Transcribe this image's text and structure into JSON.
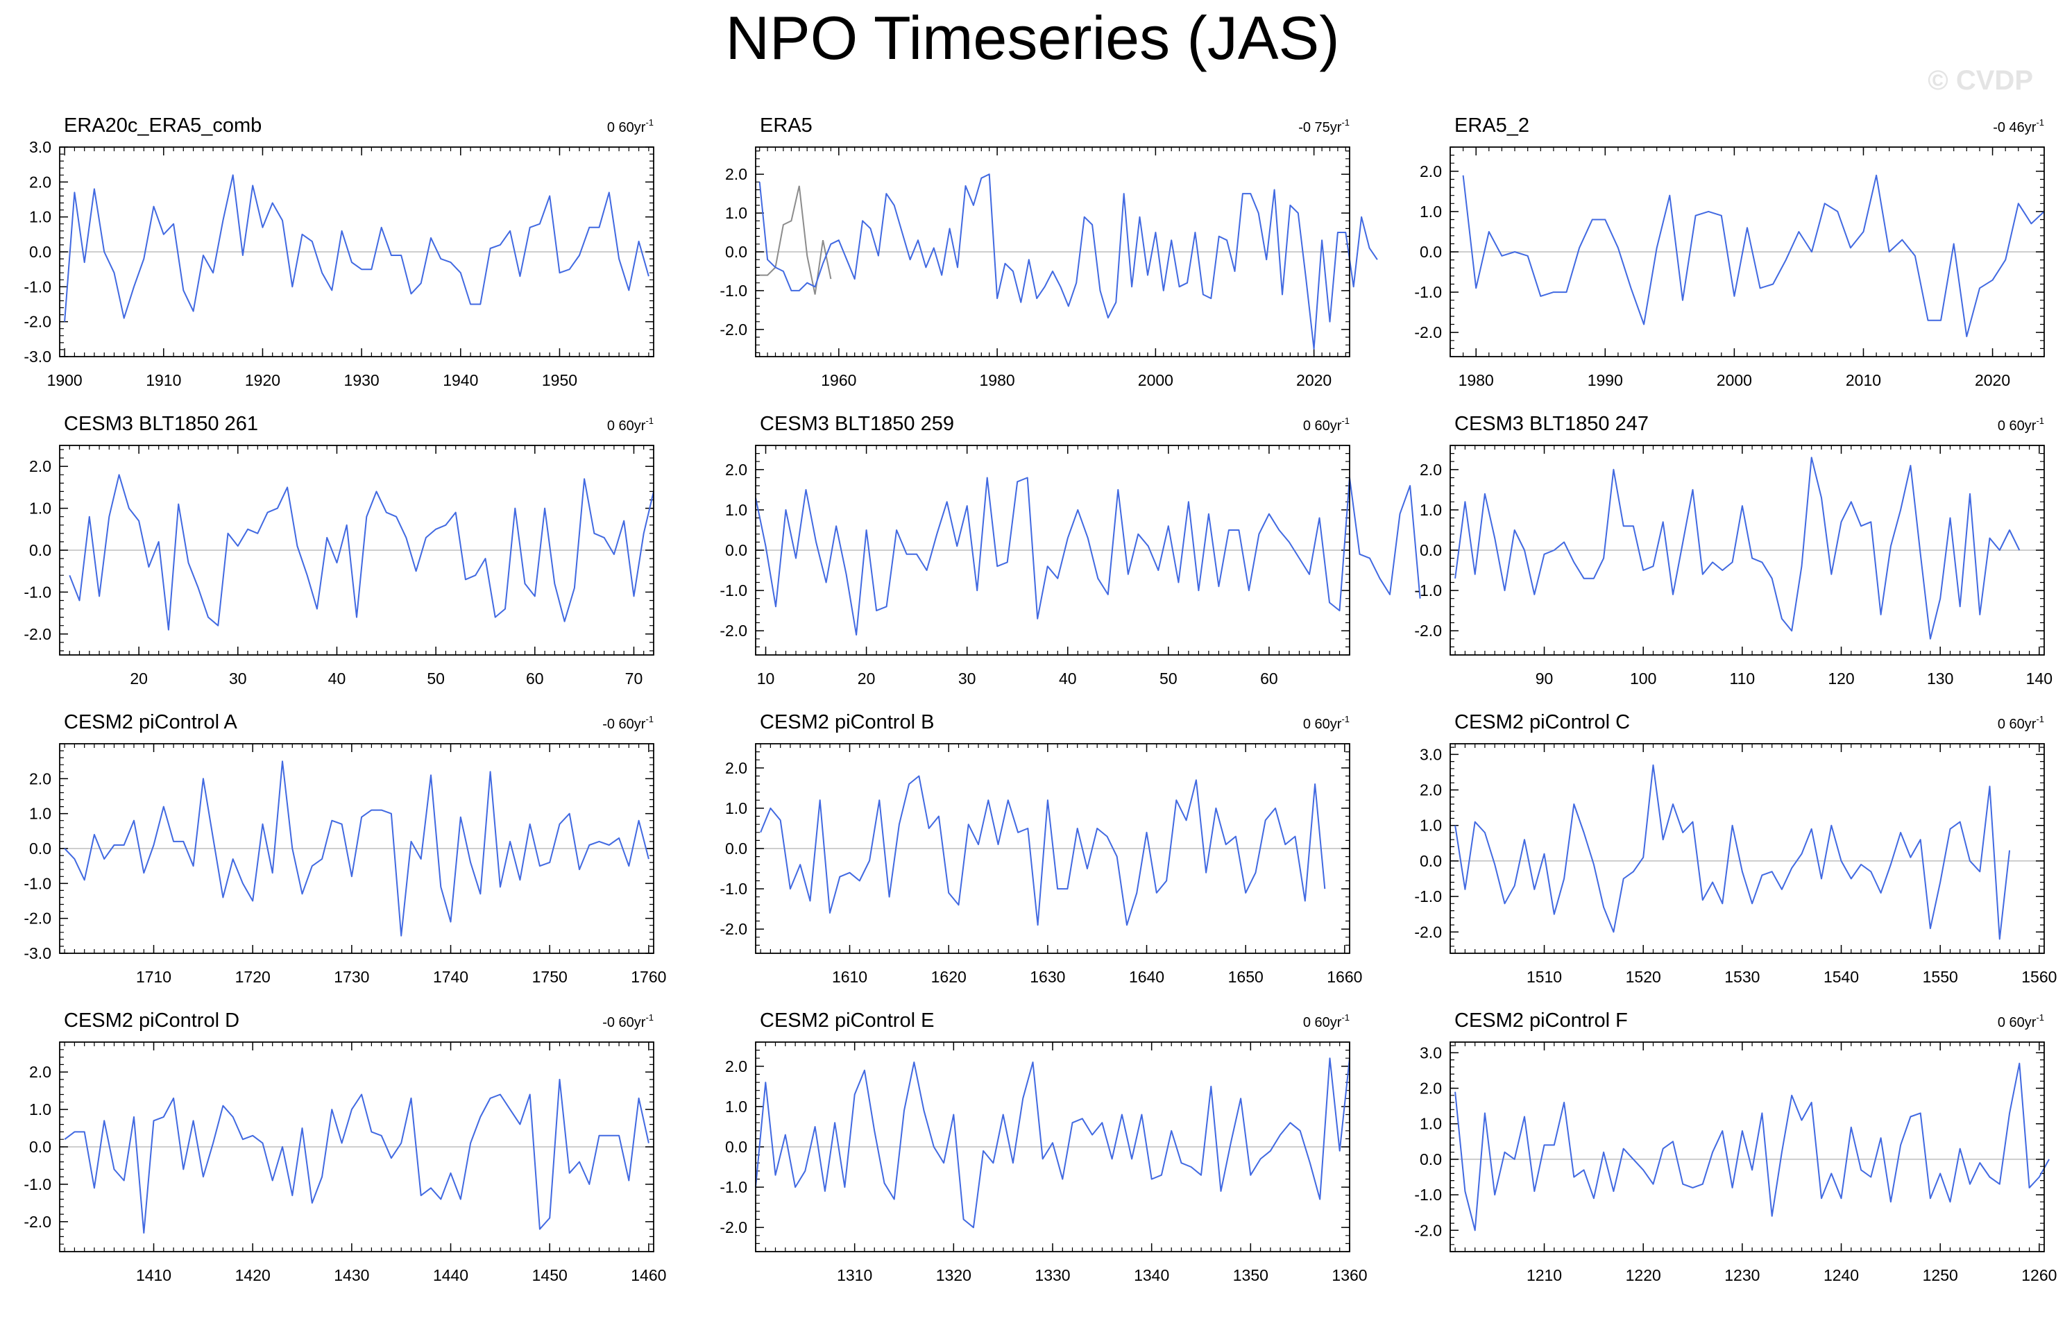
{
  "title": "NPO Timeseries (JAS)",
  "watermark": "© CVDP",
  "colors": {
    "series": "#4169e1",
    "overlay": "#8c8c8c",
    "zero_line": "#bebebe",
    "axis": "#000000"
  },
  "chart_data": [
    {
      "type": "line",
      "title": "ERA20c_ERA5_comb",
      "trend": "0 60yr",
      "trend_exp": "-1",
      "x_start": 1900,
      "xlim": [
        1899.5,
        1959.5
      ],
      "ylim": [
        -3,
        3
      ],
      "xticks": [
        1900,
        1910,
        1920,
        1930,
        1940,
        1950
      ],
      "yticks": [
        -3,
        -2,
        -1,
        0,
        1,
        2,
        3
      ],
      "yticklabels": [
        "-3.0",
        "-2.0",
        "-1.0",
        "0.0",
        "1.0",
        "2.0",
        "3.0"
      ],
      "values": [
        -2.0,
        1.7,
        -0.3,
        1.8,
        0.0,
        -0.6,
        -1.9,
        -1.0,
        -0.2,
        1.3,
        0.5,
        0.8,
        -1.1,
        -1.7,
        -0.1,
        -0.6,
        0.9,
        2.2,
        -0.1,
        1.9,
        0.7,
        1.4,
        0.9,
        -1.0,
        0.5,
        0.3,
        -0.6,
        -1.1,
        0.6,
        -0.3,
        -0.5,
        -0.5,
        0.7,
        -0.1,
        -0.1,
        -1.2,
        -0.9,
        0.4,
        -0.2,
        -0.3,
        -0.6,
        -1.5,
        -1.5,
        0.1,
        0.2,
        0.6,
        -0.7,
        0.7,
        0.8,
        1.6,
        -0.6,
        -0.5,
        -0.1,
        0.7,
        0.7,
        1.7,
        -0.2,
        -1.1,
        0.3,
        -0.7
      ]
    },
    {
      "type": "line",
      "title": "ERA5",
      "trend": "-0 75yr",
      "trend_exp": "-1",
      "x_start": 1950,
      "xlim": [
        1949.5,
        2024.5
      ],
      "ylim": [
        -2.7,
        2.7
      ],
      "xticks": [
        1960,
        1980,
        2000,
        2020
      ],
      "yticks": [
        -2,
        -1,
        0,
        1,
        2
      ],
      "yticklabels": [
        "-2.0",
        "-1.0",
        "0.0",
        "1.0",
        "2.0"
      ],
      "values": [
        1.8,
        -0.2,
        -0.4,
        -0.5,
        -1.0,
        -1.0,
        -0.8,
        -0.9,
        -0.3,
        0.2,
        0.3,
        -0.2,
        -0.7,
        0.8,
        0.6,
        -0.1,
        1.5,
        1.2,
        0.5,
        -0.2,
        0.3,
        -0.4,
        0.1,
        -0.6,
        0.6,
        -0.4,
        1.7,
        1.2,
        1.9,
        2.0,
        -1.2,
        -0.3,
        -0.5,
        -1.3,
        -0.2,
        -1.2,
        -0.9,
        -0.5,
        -0.9,
        -1.4,
        -0.8,
        0.9,
        0.7,
        -1.0,
        -1.7,
        -1.3,
        1.5,
        -0.9,
        0.9,
        -0.6,
        0.5,
        -1.0,
        0.3,
        -0.9,
        -0.8,
        0.5,
        -1.1,
        -1.2,
        0.4,
        0.3,
        -0.5,
        1.5,
        1.5,
        1.0,
        -0.2,
        1.6,
        -1.1,
        1.2,
        1.0,
        -0.7,
        -2.5,
        0.3,
        -1.8,
        0.5,
        0.5,
        -0.9,
        0.9,
        0.1,
        -0.2
      ],
      "overlay_x_start": 1950,
      "overlay_values": [
        -0.6,
        -0.6,
        -0.4,
        0.7,
        0.8,
        1.7,
        -0.1,
        -1.1,
        0.3,
        -0.7
      ]
    },
    {
      "type": "line",
      "title": "ERA5_2",
      "trend": "-0 46yr",
      "trend_exp": "-1",
      "x_start": 1979,
      "xlim": [
        1978,
        2024
      ],
      "ylim": [
        -2.6,
        2.6
      ],
      "xticks": [
        1980,
        1990,
        2000,
        2010,
        2020
      ],
      "yticks": [
        -2,
        -1,
        0,
        1,
        2
      ],
      "yticklabels": [
        "-2.0",
        "-1.0",
        "0.0",
        "1.0",
        "2.0"
      ],
      "values": [
        1.9,
        -0.9,
        0.5,
        -0.1,
        0.0,
        -0.1,
        -1.1,
        -1.0,
        -1.0,
        0.1,
        0.8,
        0.8,
        0.1,
        -0.9,
        -1.8,
        0.1,
        1.4,
        -1.2,
        0.9,
        1.0,
        0.9,
        -1.1,
        0.6,
        -0.9,
        -0.8,
        -0.2,
        0.5,
        0.0,
        1.2,
        1.0,
        0.1,
        0.5,
        1.9,
        0.0,
        0.3,
        -0.1,
        -1.7,
        -1.7,
        0.2,
        -2.1,
        -0.9,
        -0.7,
        -0.2,
        1.2,
        0.7,
        1.0
      ]
    },
    {
      "type": "line",
      "title": "CESM3 BLT1850 261",
      "trend": "0 60yr",
      "trend_exp": "-1",
      "x_start": 13,
      "xlim": [
        12,
        72
      ],
      "ylim": [
        -2.5,
        2.5
      ],
      "xticks": [
        20,
        30,
        40,
        50,
        60,
        70
      ],
      "yticks": [
        -2,
        -1,
        0,
        1,
        2
      ],
      "yticklabels": [
        "-2.0",
        "-1.0",
        "0.0",
        "1.0",
        "2.0"
      ],
      "values": [
        -0.6,
        -1.2,
        0.8,
        -1.1,
        0.8,
        1.8,
        1.0,
        0.7,
        -0.4,
        0.2,
        -1.9,
        1.1,
        -0.3,
        -0.9,
        -1.6,
        -1.8,
        0.4,
        0.1,
        0.5,
        0.4,
        0.9,
        1.0,
        1.5,
        0.1,
        -0.6,
        -1.4,
        0.3,
        -0.3,
        0.6,
        -1.6,
        0.8,
        1.4,
        0.9,
        0.8,
        0.3,
        -0.5,
        0.3,
        0.5,
        0.6,
        0.9,
        -0.7,
        -0.6,
        -0.2,
        -1.6,
        -1.4,
        1.0,
        -0.8,
        -1.1,
        1.0,
        -0.8,
        -1.7,
        -0.9,
        1.7,
        0.4,
        0.3,
        -0.1,
        0.7,
        -1.1,
        0.4,
        1.4
      ]
    },
    {
      "type": "line",
      "title": "CESM3 BLT1850 259",
      "trend": "0 60yr",
      "trend_exp": "-1",
      "x_start": 9,
      "xlim": [
        9,
        68
      ],
      "ylim": [
        -2.6,
        2.6
      ],
      "xticks": [
        10,
        20,
        30,
        40,
        50,
        60
      ],
      "yticks": [
        -2,
        -1,
        0,
        1,
        2
      ],
      "yticklabels": [
        "-2.0",
        "-1.0",
        "0.0",
        "1.0",
        "2.0"
      ],
      "values": [
        1.3,
        0.1,
        -1.4,
        1.0,
        -0.2,
        1.5,
        0.2,
        -0.8,
        0.6,
        -0.6,
        -2.1,
        0.5,
        -1.5,
        -1.4,
        0.5,
        -0.1,
        -0.1,
        -0.5,
        0.4,
        1.2,
        0.1,
        1.1,
        -1.0,
        1.8,
        -0.4,
        -0.3,
        1.7,
        1.8,
        -1.7,
        -0.4,
        -0.7,
        0.3,
        1.0,
        0.3,
        -0.7,
        -1.1,
        1.5,
        -0.6,
        0.4,
        0.1,
        -0.5,
        0.6,
        -0.8,
        1.2,
        -1.0,
        0.9,
        -0.9,
        0.5,
        0.5,
        -1.0,
        0.4,
        0.9,
        0.5,
        0.2,
        -0.2,
        -0.6,
        0.8,
        -1.3,
        -1.5,
        1.8,
        -0.1,
        -0.2,
        -0.7,
        -1.1,
        0.9,
        1.6,
        -1.2
      ]
    },
    {
      "type": "line",
      "title": "CESM3 BLT1850 247",
      "trend": "0 60yr",
      "trend_exp": "-1",
      "x_start": 81,
      "xlim": [
        80.5,
        140.5
      ],
      "ylim": [
        -2.6,
        2.6
      ],
      "xticks": [
        90,
        100,
        110,
        120,
        130,
        140
      ],
      "yticks": [
        -2,
        -1,
        0,
        1,
        2
      ],
      "yticklabels": [
        "-2.0",
        "-1.0",
        "0.0",
        "1.0",
        "2.0"
      ],
      "values": [
        -0.7,
        1.2,
        -0.6,
        1.4,
        0.3,
        -1.0,
        0.5,
        0.0,
        -1.1,
        -0.1,
        0.0,
        0.2,
        -0.3,
        -0.7,
        -0.7,
        -0.2,
        2.0,
        0.6,
        0.6,
        -0.5,
        -0.4,
        0.7,
        -1.1,
        0.2,
        1.5,
        -0.6,
        -0.3,
        -0.5,
        -0.3,
        1.1,
        -0.2,
        -0.3,
        -0.7,
        -1.7,
        -2.0,
        -0.4,
        2.3,
        1.3,
        -0.6,
        0.7,
        1.2,
        0.6,
        0.7,
        -1.6,
        0.1,
        1.0,
        2.1,
        -0.1,
        -2.2,
        -1.2,
        0.8,
        -1.4,
        1.4,
        -1.6,
        0.3,
        0.0,
        0.5,
        0.0
      ]
    },
    {
      "type": "line",
      "title": "CESM2 piControl A",
      "trend": "-0 60yr",
      "trend_exp": "-1",
      "x_start": 1701,
      "xlim": [
        1700.5,
        1760.5
      ],
      "ylim": [
        -3,
        3
      ],
      "xticks": [
        1710,
        1720,
        1730,
        1740,
        1750,
        1760
      ],
      "yticks": [
        -3,
        -2,
        -1,
        0,
        1,
        2
      ],
      "yticklabels": [
        "-3.0",
        "-2.0",
        "-1.0",
        "0.0",
        "1.0",
        "2.0"
      ],
      "values": [
        0.0,
        -0.3,
        -0.9,
        0.4,
        -0.3,
        0.1,
        0.1,
        0.8,
        -0.7,
        0.1,
        1.2,
        0.2,
        0.2,
        -0.5,
        2.0,
        0.3,
        -1.4,
        -0.3,
        -1.0,
        -1.5,
        0.7,
        -0.7,
        2.5,
        0.0,
        -1.3,
        -0.5,
        -0.3,
        0.8,
        0.7,
        -0.8,
        0.9,
        1.1,
        1.1,
        1.0,
        -2.5,
        0.2,
        -0.3,
        2.1,
        -1.1,
        -2.1,
        0.9,
        -0.4,
        -1.3,
        2.2,
        -1.1,
        0.2,
        -0.9,
        0.7,
        -0.5,
        -0.4,
        0.7,
        1.0,
        -0.6,
        0.1,
        0.2,
        0.1,
        0.3,
        -0.5,
        0.8,
        -0.3
      ]
    },
    {
      "type": "line",
      "title": "CESM2 piControl B",
      "trend": "0 60yr",
      "trend_exp": "-1",
      "x_start": 1601,
      "xlim": [
        1600.5,
        1660.5
      ],
      "ylim": [
        -2.6,
        2.6
      ],
      "xticks": [
        1610,
        1620,
        1630,
        1640,
        1650,
        1660
      ],
      "yticks": [
        -2,
        -1,
        0,
        1,
        2
      ],
      "yticklabels": [
        "-2.0",
        "-1.0",
        "0.0",
        "1.0",
        "2.0"
      ],
      "values": [
        0.4,
        1.0,
        0.7,
        -1.0,
        -0.4,
        -1.3,
        1.2,
        -1.6,
        -0.7,
        -0.6,
        -0.8,
        -0.3,
        1.2,
        -1.2,
        0.6,
        1.6,
        1.8,
        0.5,
        0.8,
        -1.1,
        -1.4,
        0.6,
        0.1,
        1.2,
        0.1,
        1.2,
        0.4,
        0.5,
        -1.9,
        1.2,
        -1.0,
        -1.0,
        0.5,
        -0.5,
        0.5,
        0.3,
        -0.2,
        -1.9,
        -1.1,
        0.4,
        -1.1,
        -0.8,
        1.2,
        0.7,
        1.7,
        -0.6,
        1.0,
        0.1,
        0.3,
        -1.1,
        -0.6,
        0.7,
        1.0,
        0.1,
        0.3,
        -1.3,
        1.6,
        -1.0
      ]
    },
    {
      "type": "line",
      "title": "CESM2 piControl C",
      "trend": "0 60yr",
      "trend_exp": "-1",
      "x_start": 1501,
      "xlim": [
        1500.5,
        1560.5
      ],
      "ylim": [
        -2.6,
        3.3
      ],
      "xticks": [
        1510,
        1520,
        1530,
        1540,
        1550,
        1560
      ],
      "yticks": [
        -2,
        -1,
        0,
        1,
        2,
        3
      ],
      "yticklabels": [
        "-2.0",
        "-1.0",
        "0.0",
        "1.0",
        "2.0",
        "3.0"
      ],
      "values": [
        1.0,
        -0.8,
        1.1,
        0.8,
        -0.1,
        -1.2,
        -0.7,
        0.6,
        -0.8,
        0.2,
        -1.5,
        -0.5,
        1.6,
        0.8,
        -0.1,
        -1.3,
        -2.0,
        -0.5,
        -0.3,
        0.1,
        2.7,
        0.6,
        1.6,
        0.8,
        1.1,
        -1.1,
        -0.6,
        -1.2,
        1.0,
        -0.3,
        -1.2,
        -0.4,
        -0.3,
        -0.8,
        -0.2,
        0.2,
        0.9,
        -0.5,
        1.0,
        0.0,
        -0.5,
        -0.1,
        -0.3,
        -0.9,
        -0.1,
        0.8,
        0.1,
        0.6,
        -1.9,
        -0.6,
        0.9,
        1.1,
        0.0,
        -0.3,
        2.1,
        -2.2,
        0.3
      ]
    },
    {
      "type": "line",
      "title": "CESM2 piControl D",
      "trend": "-0 60yr",
      "trend_exp": "-1",
      "x_start": 1401,
      "xlim": [
        1400.5,
        1460.5
      ],
      "ylim": [
        -2.8,
        2.8
      ],
      "xticks": [
        1410,
        1420,
        1430,
        1440,
        1450,
        1460
      ],
      "yticks": [
        -2,
        -1,
        0,
        1,
        2
      ],
      "yticklabels": [
        "-2.0",
        "-1.0",
        "0.0",
        "1.0",
        "2.0"
      ],
      "values": [
        0.2,
        0.4,
        0.4,
        -1.1,
        0.7,
        -0.6,
        -0.9,
        0.8,
        -2.3,
        0.7,
        0.8,
        1.3,
        -0.6,
        0.7,
        -0.8,
        0.1,
        1.1,
        0.8,
        0.2,
        0.3,
        0.1,
        -0.9,
        0.0,
        -1.3,
        0.5,
        -1.5,
        -0.8,
        1.0,
        0.1,
        1.0,
        1.4,
        0.4,
        0.3,
        -0.3,
        0.1,
        1.3,
        -1.3,
        -1.1,
        -1.4,
        -0.7,
        -1.4,
        0.1,
        0.8,
        1.3,
        1.4,
        1.0,
        0.6,
        1.4,
        -2.2,
        -1.9,
        1.8,
        -0.7,
        -0.4,
        -1.0,
        0.3,
        0.3,
        0.3,
        -0.9,
        1.3,
        0.1
      ]
    },
    {
      "type": "line",
      "title": "CESM2 piControl E",
      "trend": "0 60yr",
      "trend_exp": "-1",
      "x_start": 1300,
      "xlim": [
        1300,
        1360
      ],
      "ylim": [
        -2.6,
        2.6
      ],
      "xticks": [
        1310,
        1320,
        1330,
        1340,
        1350,
        1360
      ],
      "yticks": [
        -2,
        -1,
        0,
        1,
        2
      ],
      "yticklabels": [
        "-2.0",
        "-1.0",
        "0.0",
        "1.0",
        "2.0"
      ],
      "values": [
        -1.0,
        1.6,
        -0.7,
        0.3,
        -1.0,
        -0.6,
        0.5,
        -1.1,
        0.6,
        -1.0,
        1.3,
        1.9,
        0.4,
        -0.9,
        -1.3,
        0.9,
        2.1,
        0.9,
        0.0,
        -0.4,
        0.8,
        -1.8,
        -2.0,
        -0.1,
        -0.4,
        0.8,
        -0.4,
        1.2,
        2.1,
        -0.3,
        0.1,
        -0.8,
        0.6,
        0.7,
        0.3,
        0.6,
        -0.3,
        0.8,
        -0.3,
        0.8,
        -0.8,
        -0.7,
        0.4,
        -0.4,
        -0.5,
        -0.7,
        1.5,
        -1.1,
        0.1,
        1.2,
        -0.7,
        -0.3,
        -0.1,
        0.3,
        0.6,
        0.4,
        -0.4,
        -1.3,
        2.2,
        -0.1,
        2.2
      ]
    },
    {
      "type": "line",
      "title": "CESM2 piControl F",
      "trend": "0 60yr",
      "trend_exp": "-1",
      "x_start": 1201,
      "xlim": [
        1200.5,
        1260.5
      ],
      "ylim": [
        -2.6,
        3.3
      ],
      "xticks": [
        1210,
        1220,
        1230,
        1240,
        1250,
        1260
      ],
      "yticks": [
        -2,
        -1,
        0,
        1,
        2,
        3
      ],
      "yticklabels": [
        "-2.0",
        "-1.0",
        "0.0",
        "1.0",
        "2.0",
        "3.0"
      ],
      "values": [
        1.9,
        -0.9,
        -2.0,
        1.3,
        -1.0,
        0.2,
        0.0,
        1.2,
        -0.9,
        0.4,
        0.4,
        1.6,
        -0.5,
        -0.3,
        -1.1,
        0.2,
        -0.9,
        0.3,
        0.0,
        -0.3,
        -0.7,
        0.3,
        0.5,
        -0.7,
        -0.8,
        -0.7,
        0.2,
        0.8,
        -0.8,
        0.8,
        -0.3,
        1.3,
        -1.6,
        0.2,
        1.8,
        1.1,
        1.6,
        -1.1,
        -0.4,
        -1.1,
        0.9,
        -0.3,
        -0.5,
        0.6,
        -1.2,
        0.4,
        1.2,
        1.3,
        -1.1,
        -0.4,
        -1.2,
        0.3,
        -0.7,
        -0.1,
        -0.5,
        -0.7,
        1.3,
        2.7,
        -0.8,
        -0.5,
        0.0
      ]
    }
  ]
}
